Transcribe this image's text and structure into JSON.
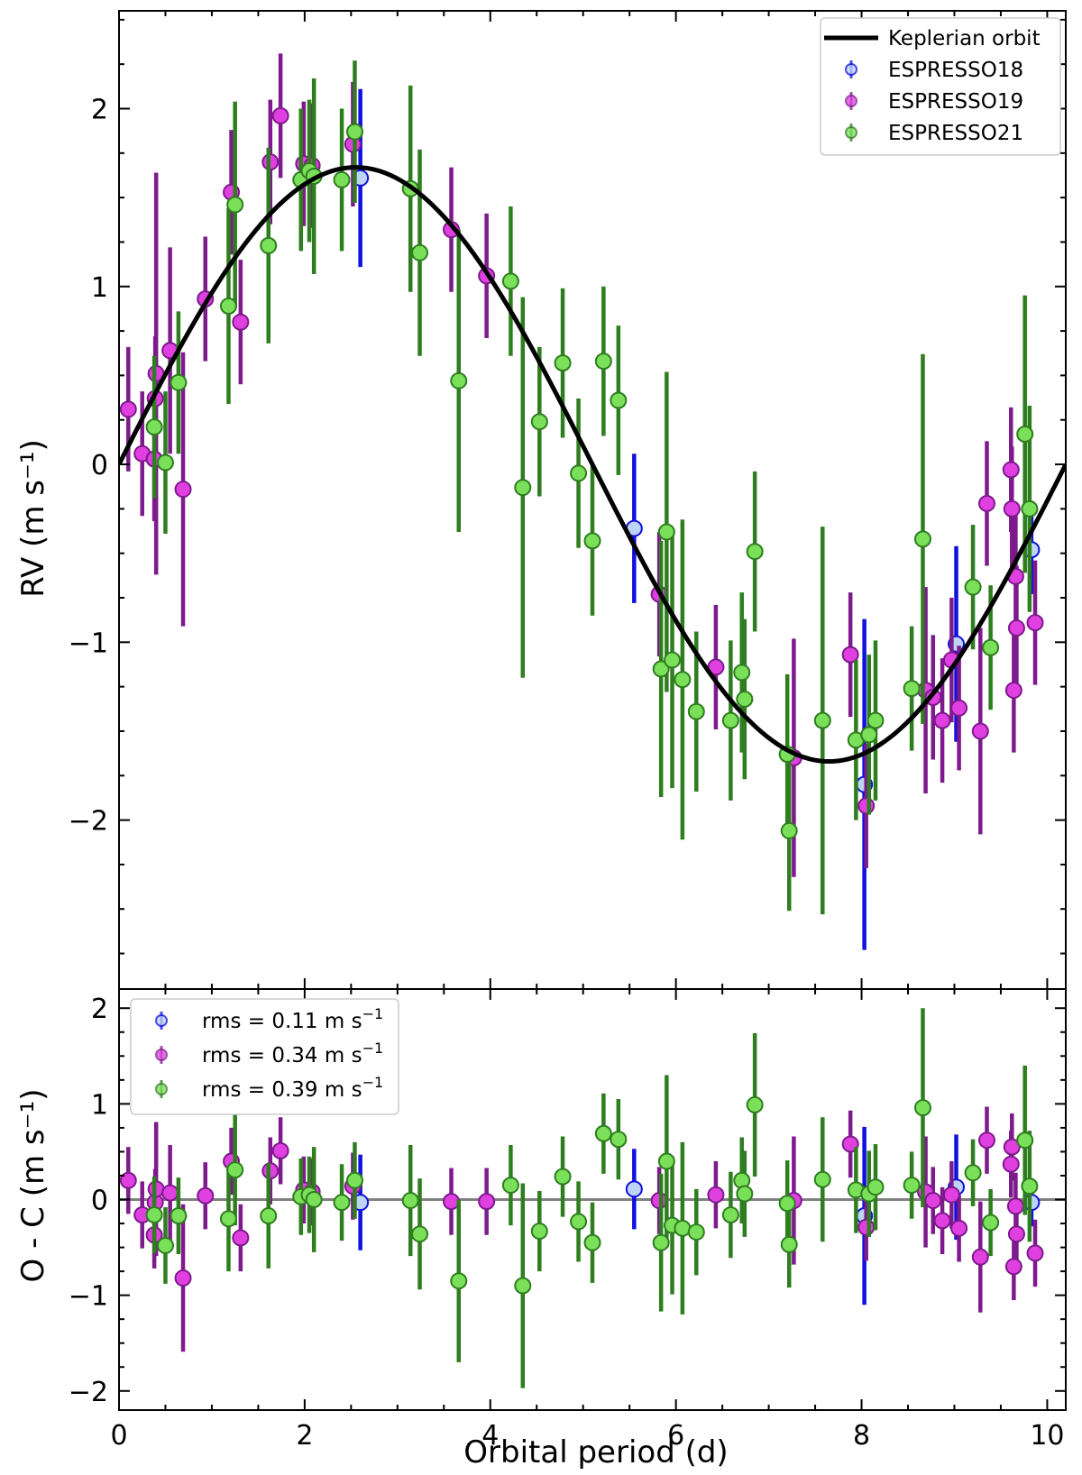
{
  "chart_data": [
    {
      "type": "scatter",
      "panel": "top",
      "title": "",
      "xlabel": "",
      "ylabel": "RV (m s⁻¹)",
      "xlim": [
        0,
        10.2
      ],
      "ylim": [
        -2.95,
        2.55
      ],
      "xticks": [
        0,
        2,
        4,
        6,
        8,
        10
      ],
      "yticks": [
        -2,
        -1,
        0,
        1,
        2
      ],
      "ytick_labels": [
        "−2",
        "−1",
        "0",
        "1",
        "2"
      ],
      "legend": {
        "location": "top-right",
        "entries": [
          {
            "label": "Keplerian orbit",
            "kind": "line"
          },
          {
            "label": "ESPRESSO18",
            "kind": "errorbar"
          },
          {
            "label": "ESPRESSO19",
            "kind": "errorbar"
          },
          {
            "label": "ESPRESSO21",
            "kind": "errorbar"
          }
        ]
      },
      "model": {
        "name": "Keplerian orbit",
        "type": "sine",
        "period": 10.2,
        "amplitude": 1.67,
        "phase_zero": 0,
        "color": "#000000"
      },
      "series": [
        {
          "name": "ESPRESSO18",
          "color": "#1010e0",
          "fill": "#bdd4f2",
          "points": [
            [
              2.6,
              1.61,
              0.5
            ],
            [
              5.55,
              -0.36,
              0.42
            ],
            [
              8.03,
              -1.8,
              0.93
            ],
            [
              9.02,
              -1.01,
              0.55
            ],
            [
              9.83,
              -0.48,
              0.25
            ]
          ]
        },
        {
          "name": "ESPRESSO19",
          "color": "#7d1a8c",
          "fill": "#e040e0",
          "points": [
            [
              0.1,
              0.31,
              0.35
            ],
            [
              0.25,
              0.06,
              0.35
            ],
            [
              0.38,
              0.03,
              0.35
            ],
            [
              0.39,
              0.37,
              0.35
            ],
            [
              0.4,
              0.51,
              1.13
            ],
            [
              0.55,
              0.64,
              0.58
            ],
            [
              0.69,
              -0.14,
              0.77
            ],
            [
              0.93,
              0.93,
              0.35
            ],
            [
              1.21,
              1.53,
              0.35
            ],
            [
              1.31,
              0.8,
              0.35
            ],
            [
              1.63,
              1.7,
              0.35
            ],
            [
              1.74,
              1.96,
              0.35
            ],
            [
              1.99,
              1.69,
              0.35
            ],
            [
              2.08,
              1.68,
              0.35
            ],
            [
              2.52,
              1.8,
              0.35
            ],
            [
              3.58,
              1.32,
              0.35
            ],
            [
              3.96,
              1.06,
              0.35
            ],
            [
              5.82,
              -0.73,
              0.35
            ],
            [
              6.43,
              -1.14,
              0.35
            ],
            [
              7.27,
              -1.65,
              0.67
            ],
            [
              7.88,
              -1.07,
              0.35
            ],
            [
              8.05,
              -1.92,
              0.35
            ],
            [
              8.69,
              -1.27,
              0.58
            ],
            [
              8.77,
              -1.31,
              0.35
            ],
            [
              8.87,
              -1.44,
              0.35
            ],
            [
              8.97,
              -1.1,
              0.35
            ],
            [
              9.05,
              -1.37,
              0.35
            ],
            [
              9.28,
              -1.5,
              0.58
            ],
            [
              9.35,
              -0.22,
              0.35
            ],
            [
              9.61,
              -0.03,
              0.35
            ],
            [
              9.62,
              -0.25,
              0.35
            ],
            [
              9.64,
              -1.27,
              0.35
            ],
            [
              9.66,
              -0.63,
              0.35
            ],
            [
              9.67,
              -0.92,
              0.35
            ],
            [
              9.87,
              -0.89,
              0.35
            ]
          ]
        },
        {
          "name": "ESPRESSO21",
          "color": "#2e7d1e",
          "fill": "#7ae05a",
          "points": [
            [
              0.38,
              0.21,
              0.4
            ],
            [
              0.5,
              0.01,
              0.4
            ],
            [
              0.64,
              0.46,
              0.4
            ],
            [
              1.18,
              0.89,
              0.55
            ],
            [
              1.25,
              1.46,
              0.58
            ],
            [
              1.61,
              1.23,
              0.55
            ],
            [
              1.96,
              1.6,
              0.4
            ],
            [
              2.05,
              1.65,
              0.4
            ],
            [
              2.1,
              1.62,
              0.55
            ],
            [
              2.4,
              1.6,
              0.4
            ],
            [
              2.54,
              1.87,
              0.4
            ],
            [
              3.14,
              1.55,
              0.58
            ],
            [
              3.24,
              1.19,
              0.58
            ],
            [
              3.66,
              0.47,
              0.85
            ],
            [
              4.22,
              1.03,
              0.42
            ],
            [
              4.35,
              -0.13,
              1.07
            ],
            [
              4.53,
              0.24,
              0.42
            ],
            [
              4.78,
              0.57,
              0.42
            ],
            [
              4.95,
              -0.05,
              0.42
            ],
            [
              5.1,
              -0.43,
              0.42
            ],
            [
              5.22,
              0.58,
              0.42
            ],
            [
              5.38,
              0.36,
              0.42
            ],
            [
              5.84,
              -1.15,
              0.72
            ],
            [
              5.9,
              -0.38,
              0.9
            ],
            [
              5.96,
              -1.1,
              0.72
            ],
            [
              6.07,
              -1.21,
              0.9
            ],
            [
              6.22,
              -1.39,
              0.45
            ],
            [
              6.59,
              -1.44,
              0.45
            ],
            [
              6.71,
              -1.17,
              0.45
            ],
            [
              6.74,
              -1.32,
              0.45
            ],
            [
              6.85,
              -0.49,
              0.45
            ],
            [
              7.2,
              -1.63,
              0.45
            ],
            [
              7.22,
              -2.06,
              0.45
            ],
            [
              7.58,
              -1.44,
              1.09
            ],
            [
              7.94,
              -1.55,
              0.45
            ],
            [
              8.08,
              -1.52,
              0.45
            ],
            [
              8.15,
              -1.44,
              0.45
            ],
            [
              8.54,
              -1.26,
              0.35
            ],
            [
              8.66,
              -0.42,
              1.04
            ],
            [
              9.2,
              -0.69,
              0.35
            ],
            [
              9.39,
              -1.03,
              0.35
            ],
            [
              9.76,
              0.17,
              0.78
            ],
            [
              9.81,
              -0.25,
              0.58
            ]
          ]
        }
      ]
    },
    {
      "type": "scatter",
      "panel": "bottom",
      "title": "",
      "xlabel": "Orbital period (d)",
      "ylabel": "O - C (m s⁻¹)",
      "xlim": [
        0,
        10.2
      ],
      "ylim": [
        -2.2,
        2.2
      ],
      "xticks": [
        0,
        2,
        4,
        6,
        8,
        10
      ],
      "xtick_labels": [
        "0",
        "2",
        "4",
        "6",
        "8",
        "10"
      ],
      "yticks": [
        -2,
        -1,
        0,
        1,
        2
      ],
      "ytick_labels": [
        "−2",
        "−1",
        "0",
        "1",
        "2"
      ],
      "reference_line": {
        "y": 0,
        "color": "#808080"
      },
      "legend": {
        "location": "top-left",
        "entries": [
          {
            "series": "ESPRESSO18",
            "label_prefix": "rms = 0.11 m s",
            "label_sup": "−1"
          },
          {
            "series": "ESPRESSO19",
            "label_prefix": "rms = 0.34 m s",
            "label_sup": "−1"
          },
          {
            "series": "ESPRESSO21",
            "label_prefix": "rms = 0.39 m s",
            "label_sup": "−1"
          }
        ]
      },
      "series": [
        {
          "name": "ESPRESSO18",
          "color": "#1010e0",
          "fill": "#bdd4f2",
          "points": [
            [
              2.6,
              -0.03,
              0.5
            ],
            [
              5.55,
              0.11,
              0.42
            ],
            [
              8.03,
              -0.17,
              0.93
            ],
            [
              9.02,
              0.13,
              0.55
            ],
            [
              9.83,
              -0.03,
              0.25
            ]
          ]
        },
        {
          "name": "ESPRESSO19",
          "color": "#7d1a8c",
          "fill": "#e040e0",
          "points": [
            [
              0.1,
              0.2,
              0.35
            ],
            [
              0.25,
              -0.16,
              0.35
            ],
            [
              0.38,
              -0.37,
              0.35
            ],
            [
              0.39,
              -0.03,
              0.35
            ],
            [
              0.4,
              0.11,
              0.7
            ],
            [
              0.55,
              0.07,
              0.5
            ],
            [
              0.69,
              -0.82,
              0.77
            ],
            [
              0.93,
              0.04,
              0.35
            ],
            [
              1.21,
              0.4,
              0.35
            ],
            [
              1.31,
              -0.4,
              0.35
            ],
            [
              1.63,
              0.3,
              0.35
            ],
            [
              1.74,
              0.51,
              0.35
            ],
            [
              1.99,
              0.1,
              0.35
            ],
            [
              2.08,
              0.08,
              0.35
            ],
            [
              2.52,
              0.14,
              0.35
            ],
            [
              3.58,
              -0.02,
              0.35
            ],
            [
              3.96,
              -0.02,
              0.35
            ],
            [
              5.82,
              -0.01,
              0.35
            ],
            [
              6.43,
              0.05,
              0.35
            ],
            [
              7.27,
              -0.01,
              0.67
            ],
            [
              7.88,
              0.58,
              0.35
            ],
            [
              8.05,
              -0.29,
              0.35
            ],
            [
              8.69,
              0.08,
              0.58
            ],
            [
              8.77,
              -0.01,
              0.35
            ],
            [
              8.87,
              -0.22,
              0.35
            ],
            [
              8.97,
              0.05,
              0.35
            ],
            [
              9.05,
              -0.3,
              0.35
            ],
            [
              9.28,
              -0.6,
              0.58
            ],
            [
              9.35,
              0.62,
              0.35
            ],
            [
              9.61,
              0.37,
              0.35
            ],
            [
              9.62,
              0.55,
              0.35
            ],
            [
              9.64,
              -0.7,
              0.35
            ],
            [
              9.66,
              -0.07,
              0.35
            ],
            [
              9.67,
              -0.36,
              0.35
            ],
            [
              9.87,
              -0.56,
              0.35
            ]
          ]
        },
        {
          "name": "ESPRESSO21",
          "color": "#2e7d1e",
          "fill": "#7ae05a",
          "points": [
            [
              0.38,
              -0.16,
              0.4
            ],
            [
              0.5,
              -0.48,
              0.4
            ],
            [
              0.64,
              -0.17,
              0.4
            ],
            [
              1.18,
              -0.2,
              0.55
            ],
            [
              1.25,
              0.31,
              0.58
            ],
            [
              1.61,
              -0.17,
              0.55
            ],
            [
              1.96,
              0.03,
              0.4
            ],
            [
              2.05,
              0.05,
              0.4
            ],
            [
              2.1,
              0.0,
              0.55
            ],
            [
              2.4,
              -0.03,
              0.4
            ],
            [
              2.54,
              0.2,
              0.4
            ],
            [
              3.14,
              -0.01,
              0.58
            ],
            [
              3.24,
              -0.36,
              0.58
            ],
            [
              3.66,
              -0.85,
              0.85
            ],
            [
              4.22,
              0.15,
              0.42
            ],
            [
              4.35,
              -0.9,
              1.07
            ],
            [
              4.53,
              -0.33,
              0.42
            ],
            [
              4.78,
              0.24,
              0.42
            ],
            [
              4.95,
              -0.23,
              0.42
            ],
            [
              5.1,
              -0.45,
              0.42
            ],
            [
              5.22,
              0.69,
              0.42
            ],
            [
              5.38,
              0.63,
              0.42
            ],
            [
              5.84,
              -0.45,
              0.72
            ],
            [
              5.9,
              0.4,
              0.9
            ],
            [
              5.96,
              -0.27,
              0.72
            ],
            [
              6.07,
              -0.3,
              0.9
            ],
            [
              6.22,
              -0.34,
              0.45
            ],
            [
              6.59,
              -0.16,
              0.45
            ],
            [
              6.71,
              0.2,
              0.45
            ],
            [
              6.74,
              0.06,
              0.45
            ],
            [
              6.85,
              0.99,
              0.75
            ],
            [
              7.2,
              -0.04,
              0.45
            ],
            [
              7.22,
              -0.47,
              0.45
            ],
            [
              7.58,
              0.21,
              0.65
            ],
            [
              7.94,
              0.1,
              0.45
            ],
            [
              8.08,
              0.06,
              0.45
            ],
            [
              8.15,
              0.13,
              0.45
            ],
            [
              8.54,
              0.15,
              0.35
            ],
            [
              8.66,
              0.96,
              1.04
            ],
            [
              9.2,
              0.28,
              0.35
            ],
            [
              9.39,
              -0.24,
              0.35
            ],
            [
              9.76,
              0.62,
              0.78
            ],
            [
              9.81,
              0.14,
              0.58
            ]
          ]
        }
      ]
    }
  ]
}
